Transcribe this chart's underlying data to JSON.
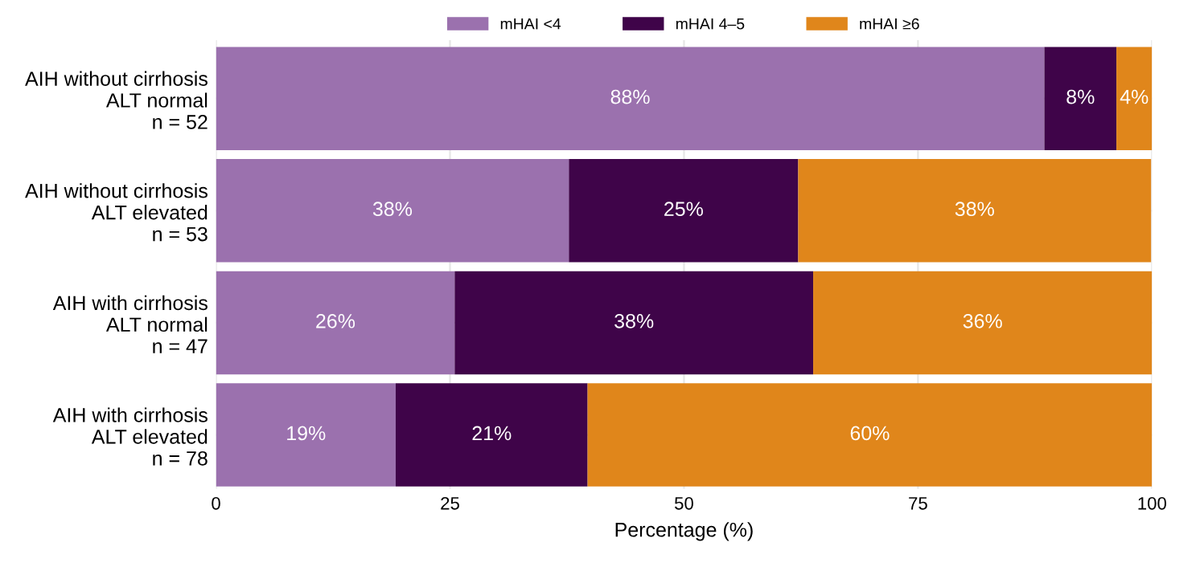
{
  "chart_data": {
    "type": "bar",
    "orientation": "horizontal",
    "stacked": true,
    "xlabel": "Percentage (%)",
    "categories": [
      "AIH without cirrhosis\nALT normal\nn = 52",
      "AIH without cirrhosis\nALT elevated\nn = 53",
      "AIH with cirrhosis\nALT normal\nn = 47",
      "AIH with cirrhosis\nALT elevated\nn = 78"
    ],
    "series": [
      {
        "name": "mHAI <4",
        "color": "#9b71ae",
        "values": [
          88.5,
          37.7,
          25.5,
          19.2
        ],
        "value_labels": [
          "88%",
          "38%",
          "26%",
          "19%"
        ]
      },
      {
        "name": "mHAI 4–5",
        "color": "#3f0449",
        "values": [
          7.7,
          24.5,
          38.3,
          20.5
        ],
        "value_labels": [
          "8%",
          "25%",
          "38%",
          "21%"
        ]
      },
      {
        "name": "mHAI ≥6",
        "color": "#e0861b",
        "values": [
          3.8,
          37.7,
          36.2,
          60.3
        ],
        "value_labels": [
          "4%",
          "38%",
          "36%",
          "60%"
        ]
      }
    ],
    "xlim": [
      0,
      100
    ],
    "xticks": [
      0,
      25,
      50,
      75,
      100
    ],
    "grid": true,
    "legend": "top"
  }
}
